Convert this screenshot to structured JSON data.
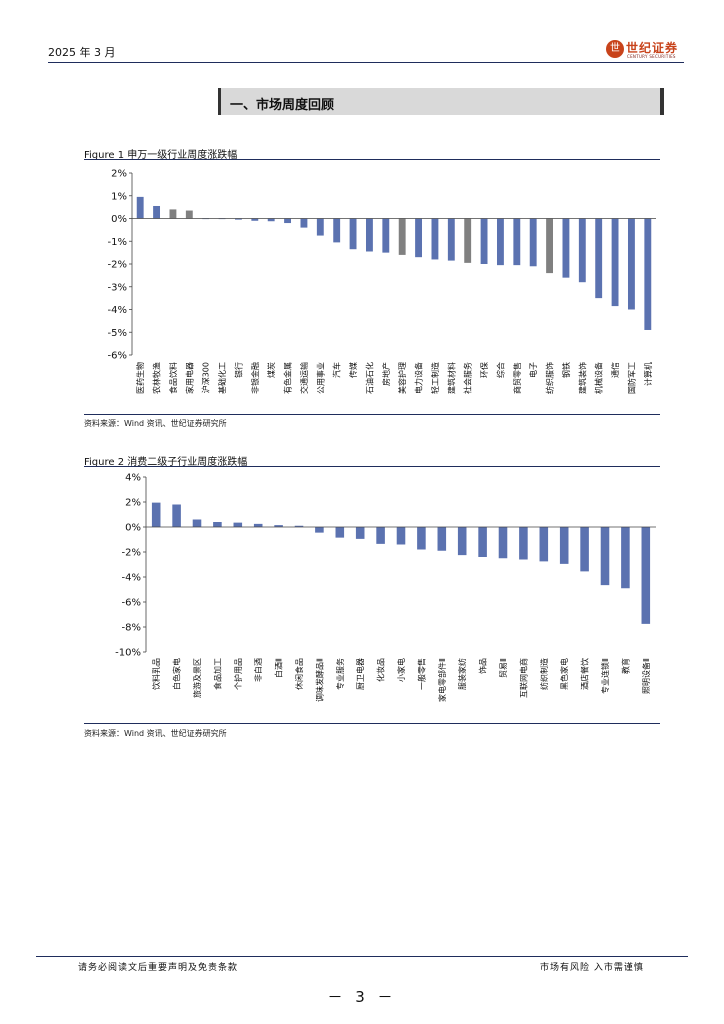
{
  "header": {
    "date": "2025 年 3 月",
    "logo_name": "世纪证券",
    "logo_sub": "CENTURY SECURITIES"
  },
  "section_title": "一、市场周度回顾",
  "figure1": {
    "title": "Figure 1  申万一级行业周度涨跌幅",
    "source": "资料来源：Wind 资讯、世纪证券研究所",
    "chart_data": {
      "type": "bar",
      "ylim": [
        -6,
        2
      ],
      "yticks": [
        2,
        1,
        0,
        -1,
        -2,
        -3,
        -4,
        -5,
        -6
      ],
      "ytick_labels": [
        "2%",
        "1%",
        "0%",
        "-1%",
        "-2%",
        "-3%",
        "-4%",
        "-5%",
        "-6%"
      ],
      "categories": [
        "医药生物",
        "农林牧渔",
        "食品饮料",
        "家用电器",
        "沪深300",
        "基础化工",
        "银行",
        "非银金融",
        "煤炭",
        "有色金属",
        "交通运输",
        "公用事业",
        "汽车",
        "传媒",
        "石油石化",
        "房地产",
        "美容护理",
        "电力设备",
        "轻工制造",
        "建筑材料",
        "社会服务",
        "环保",
        "综合",
        "商贸零售",
        "电子",
        "纺织服饰",
        "钢铁",
        "建筑装饰",
        "机械设备",
        "通信",
        "国防军工",
        "计算机"
      ],
      "values": [
        0.95,
        0.55,
        0.4,
        0.35,
        0.0,
        -0.02,
        -0.05,
        -0.1,
        -0.12,
        -0.2,
        -0.4,
        -0.75,
        -1.05,
        -1.35,
        -1.45,
        -1.5,
        -1.6,
        -1.7,
        -1.8,
        -1.85,
        -1.95,
        -2.0,
        -2.05,
        -2.05,
        -2.1,
        -2.4,
        -2.6,
        -2.8,
        -3.5,
        -3.85,
        -4.0,
        -4.9
      ],
      "highlight": [
        2,
        3,
        16,
        20,
        25
      ],
      "colors": {
        "bar": "#5b72b0",
        "highlight": "#808080"
      }
    }
  },
  "figure2": {
    "title": "Figure 2 消费二级子行业周度涨跌幅",
    "source": "资料来源：Wind 资讯、世纪证券研究所",
    "chart_data": {
      "type": "bar",
      "ylim": [
        -10,
        4
      ],
      "yticks": [
        4,
        2,
        0,
        -2,
        -4,
        -6,
        -8,
        -10
      ],
      "ytick_labels": [
        "4%",
        "2%",
        "0%",
        "-2%",
        "-4%",
        "-6%",
        "-8%",
        "-10%"
      ],
      "categories": [
        "饮料乳品",
        "白色家电",
        "旅游及景区",
        "食品加工",
        "个护用品",
        "非白酒",
        "白酒Ⅱ",
        "休闲食品",
        "调味发酵品Ⅱ",
        "专业服务",
        "厨卫电器",
        "化妆品",
        "小家电",
        "一般零售",
        "家电零部件Ⅱ",
        "服装家纺",
        "饰品",
        "贸易Ⅱ",
        "互联网电商",
        "纺织制造",
        "黑色家电",
        "酒店餐饮",
        "专业连锁Ⅱ",
        "教育",
        "照明设备Ⅱ"
      ],
      "values": [
        1.95,
        1.8,
        0.6,
        0.4,
        0.35,
        0.25,
        0.15,
        0.1,
        -0.45,
        -0.85,
        -0.95,
        -1.35,
        -1.4,
        -1.8,
        -1.9,
        -2.25,
        -2.4,
        -2.5,
        -2.6,
        -2.75,
        -2.95,
        -3.55,
        -4.65,
        -4.9,
        -7.75
      ],
      "colors": {
        "bar": "#5b72b0"
      }
    }
  },
  "footer": {
    "disclaimer": "请务必阅读文后重要声明及免责条款",
    "risk": "市场有风险 入市需谨慎",
    "page": "－ 3 －"
  }
}
